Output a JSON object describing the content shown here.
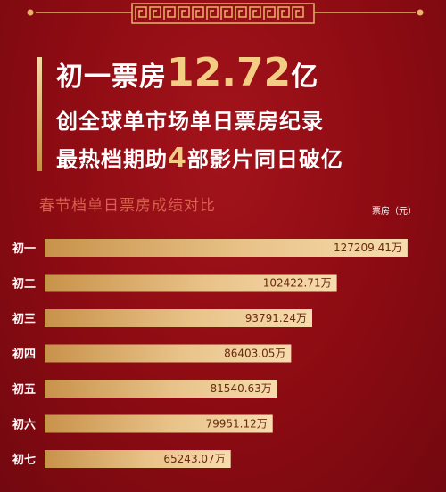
{
  "headline": {
    "line1_prefix": "初一票房",
    "line1_number": "12.72",
    "line1_suffix": "亿",
    "line2": "创全球单市场单日票房纪录",
    "line3_prefix": "最热档期助",
    "line3_number": "4",
    "line3_suffix": "部影片同日破亿"
  },
  "colors": {
    "background": "#8c0b12",
    "accent_gold": "#f3cd84",
    "bar_light": "#f7dcae",
    "bar_dark": "#c8924a",
    "section_title": "#d9604f"
  },
  "chart_data": {
    "type": "bar",
    "orientation": "horizontal",
    "title": "春节档单日票房成绩对比",
    "unit_label": "票房（元）",
    "grid": false,
    "legend": "none",
    "categories": [
      "初一",
      "初二",
      "初三",
      "初四",
      "初五",
      "初六",
      "初七"
    ],
    "values": [
      127209.41,
      102422.71,
      93791.24,
      86403.05,
      81540.63,
      79951.12,
      65243.07
    ],
    "value_labels": [
      "127209.41万",
      "102422.71万",
      "93791.24万",
      "86403.05万",
      "81540.63万",
      "79951.12万",
      "65243.07万"
    ],
    "xlim": [
      0,
      136000
    ]
  }
}
